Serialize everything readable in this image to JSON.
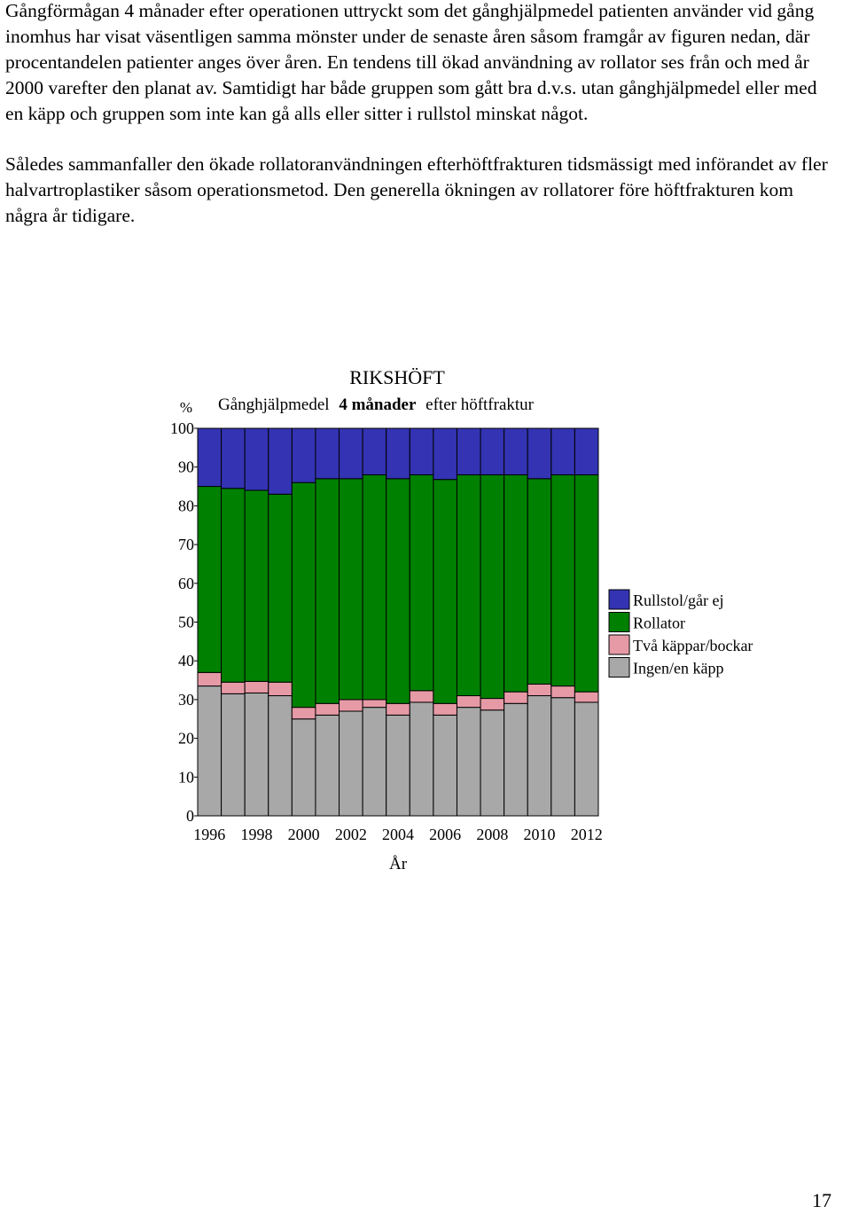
{
  "document": {
    "paragraphs": [
      "Gångförmågan 4 månader efter operationen uttryckt som det gånghjälpmedel patienten använder vid gång inomhus har visat väsentligen samma mönster under de senaste åren såsom framgår av figuren nedan, där procentandelen patienter anges över åren. En tendens till ökad användning av rollator ses från och med år 2000 varefter den planat av. Samtidigt har både gruppen som gått bra d.v.s. utan gånghjälpmedel eller med en käpp och gruppen som inte kan gå alls eller sitter i rullstol minskat något.",
      "Således sammanfaller den ökade rollatoranvändningen efterhöftfrakturen tidsmässigt med införandet av fler halvartroplastiker såsom operationsmetod. Den generella ökningen av rollatorer före höftfrakturen kom några år tidigare."
    ],
    "page_number": "17"
  },
  "chart_data": {
    "type": "bar",
    "stacked": true,
    "title": "RIKSHÖFT",
    "subtitle_prefix": "Gånghjälpmedel",
    "subtitle_bold": "4 månader",
    "subtitle_suffix": "efter höftfraktur",
    "ylabel": "%",
    "xlabel": "År",
    "ylim": [
      0,
      100
    ],
    "yticks": [
      0,
      10,
      20,
      30,
      40,
      50,
      60,
      70,
      80,
      90,
      100
    ],
    "xtick_labels": [
      "1996",
      "1998",
      "2000",
      "2002",
      "2004",
      "2006",
      "2008",
      "2010",
      "2012"
    ],
    "categories": [
      "1996",
      "1997",
      "1998",
      "1999",
      "2000",
      "2001",
      "2002",
      "2003",
      "2004",
      "2005",
      "2006",
      "2007",
      "2008",
      "2009",
      "2010",
      "2011",
      "2012"
    ],
    "legend_position": "right",
    "series": [
      {
        "name": "Ingen/en käpp",
        "color": "#a8a8a8",
        "values": [
          33.5,
          31.5,
          31.7,
          31,
          25,
          26,
          27,
          28,
          26,
          29.3,
          26,
          28,
          27.3,
          29,
          31,
          30.5,
          29.3
        ]
      },
      {
        "name": "Två käppar/bockar",
        "color": "#e69aa6",
        "values": [
          3.5,
          3,
          3,
          3.5,
          3,
          3,
          3,
          2,
          3,
          3,
          3,
          3,
          3,
          3,
          3,
          3,
          2.7
        ]
      },
      {
        "name": "Rollator",
        "color": "#008000",
        "values": [
          48,
          50,
          49.3,
          48.5,
          58,
          58,
          57,
          58,
          58,
          55.7,
          57.8,
          57,
          57.7,
          56,
          53,
          54.5,
          56
        ]
      },
      {
        "name": "Rullstol/går ej",
        "color": "#3333b3",
        "values": [
          15,
          15.5,
          16,
          17,
          14,
          13,
          13,
          12,
          13,
          12,
          13.2,
          12,
          12,
          12,
          13,
          12,
          12
        ]
      }
    ]
  }
}
